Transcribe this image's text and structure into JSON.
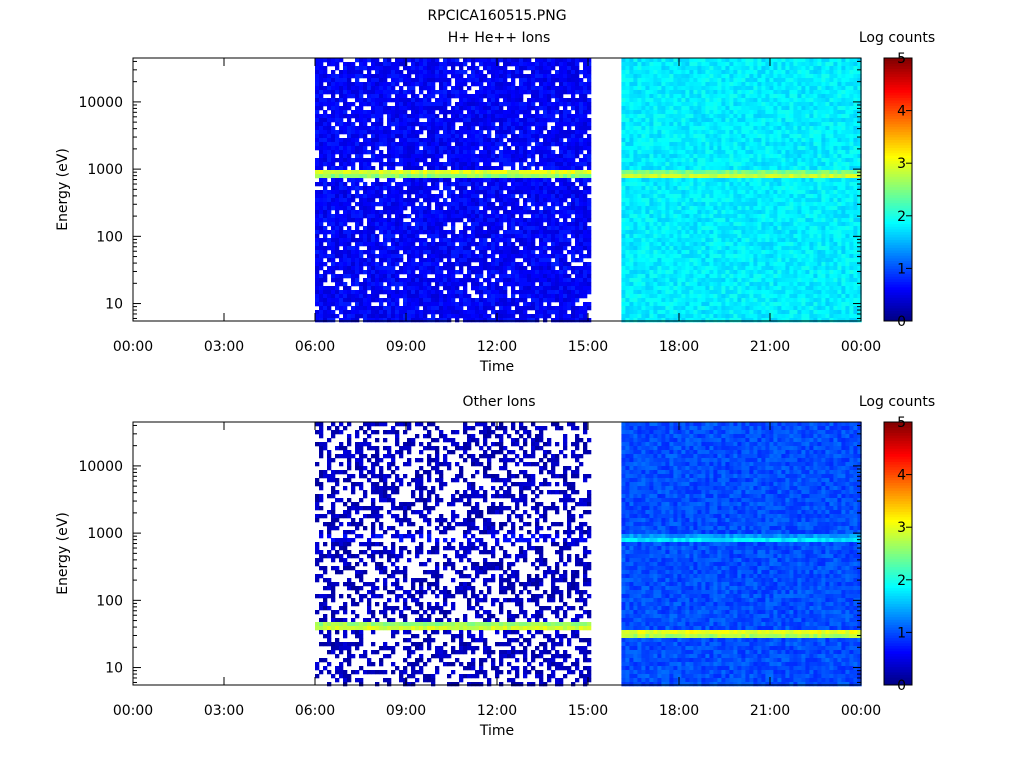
{
  "title": "RPCICA160515.PNG",
  "colorbar": {
    "label": "Log counts",
    "ticks": [
      "0",
      "1",
      "2",
      "3",
      "4",
      "5"
    ],
    "range": [
      0,
      5
    ],
    "colors": [
      "#000080",
      "#0000ff",
      "#00a0ff",
      "#00ffff",
      "#80ff80",
      "#ffff00",
      "#ff8000",
      "#ff0000",
      "#800000"
    ]
  },
  "chart_data": [
    {
      "type": "heatmap",
      "title": "H+ He++ Ions",
      "xlabel": "Time",
      "ylabel": "Energy (eV)",
      "x_ticks": [
        "00:00",
        "03:00",
        "06:00",
        "09:00",
        "12:00",
        "15:00",
        "18:00",
        "21:00",
        "00:00"
      ],
      "xlim_hours": [
        0,
        24
      ],
      "y_ticks": [
        "10",
        "100",
        "1000",
        "10000"
      ],
      "y_scale": "log",
      "ylim": [
        5.5,
        45000
      ],
      "value_label": "Log counts",
      "value_range": [
        0,
        5
      ],
      "data_intervals_hours": [
        [
          6.0,
          15.0
        ],
        [
          16.1,
          23.9
        ]
      ],
      "features": [
        {
          "interval": 0,
          "energy_eV": 900,
          "log_counts": 3.0
        },
        {
          "interval": 1,
          "energy_eV": 800,
          "log_counts": 2.9
        },
        {
          "interval": 0,
          "background_log_counts": 0.6
        },
        {
          "interval": 1,
          "background_log_counts": 1.8
        }
      ]
    },
    {
      "type": "heatmap",
      "title": "Other Ions",
      "xlabel": "Time",
      "ylabel": "Energy (eV)",
      "x_ticks": [
        "00:00",
        "03:00",
        "06:00",
        "09:00",
        "12:00",
        "15:00",
        "18:00",
        "21:00",
        "00:00"
      ],
      "xlim_hours": [
        0,
        24
      ],
      "y_ticks": [
        "10",
        "100",
        "1000",
        "10000"
      ],
      "y_scale": "log",
      "ylim": [
        5.5,
        45000
      ],
      "value_label": "Log counts",
      "value_range": [
        0,
        5
      ],
      "data_intervals_hours": [
        [
          6.0,
          15.0
        ],
        [
          16.1,
          23.9
        ]
      ],
      "features": [
        {
          "interval": 0,
          "energy_eV": 40,
          "log_counts": 3.0
        },
        {
          "interval": 1,
          "energy_eV": 33,
          "log_counts": 3.1
        },
        {
          "interval": 0,
          "energy_eV": 850,
          "log_counts": 0.8
        },
        {
          "interval": 1,
          "energy_eV": 800,
          "log_counts": 1.8
        },
        {
          "interval": 0,
          "background_log_counts": 0.3
        },
        {
          "interval": 1,
          "background_log_counts": 1.0
        }
      ]
    }
  ]
}
